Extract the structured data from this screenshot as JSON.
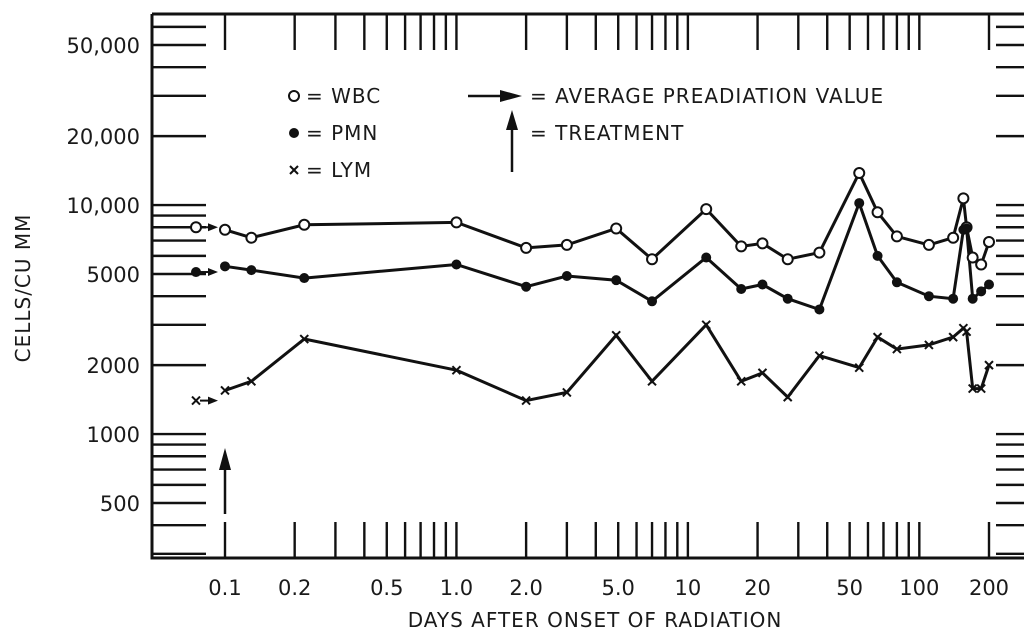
{
  "chart_data": {
    "type": "line",
    "xlabel": "DAYS AFTER ONSET OF RADIATION",
    "ylabel": "CELLS/CU MM",
    "x_scale": "log",
    "y_scale": "log",
    "xlim": [
      0.055,
      250
    ],
    "ylim": [
      300,
      65000
    ],
    "x_tick_labels": [
      "0.1",
      "0.2",
      "0.5",
      "1.0",
      "2.0",
      "5.0",
      "10",
      "20",
      "50",
      "100",
      "200"
    ],
    "x_tick_values": [
      0.1,
      0.2,
      0.5,
      1.0,
      2.0,
      5.0,
      10,
      20,
      50,
      100,
      200
    ],
    "y_tick_labels": [
      "500",
      "1000",
      "2000",
      "5000",
      "10,000",
      "20,000",
      "50,000"
    ],
    "y_tick_values": [
      500,
      1000,
      2000,
      5000,
      10000,
      20000,
      50000
    ],
    "legend": [
      {
        "symbol": "o",
        "text": "= WBC"
      },
      {
        "symbol": "•",
        "text": "= PMN"
      },
      {
        "symbol": "x",
        "text": "= LYM"
      }
    ],
    "annotations": {
      "arrow_right_text": "= AVERAGE PREADIATION VALUE",
      "arrow_up_text": "= TREATMENT"
    },
    "preradiation_values": {
      "WBC": 8000,
      "PMN": 5100,
      "LYM": 1400
    },
    "treatment_day": 0.1,
    "series": [
      {
        "name": "WBC",
        "marker": "open-circle",
        "x": [
          0.1,
          0.13,
          0.22,
          1.0,
          2.0,
          3.0,
          4.9,
          7.0,
          12,
          17,
          21,
          27,
          37,
          55,
          66,
          80,
          110,
          140,
          155,
          160,
          170,
          185,
          200
        ],
        "y": [
          7800,
          7200,
          8200,
          8400,
          6500,
          6700,
          7900,
          5800,
          9600,
          6600,
          6800,
          5800,
          6200,
          13800,
          9300,
          7300,
          6700,
          7200,
          10700,
          8000,
          5900,
          5500,
          6900
        ]
      },
      {
        "name": "PMN",
        "marker": "filled-circle",
        "x": [
          0.1,
          0.13,
          0.22,
          1.0,
          2.0,
          3.0,
          4.9,
          7.0,
          12,
          17,
          21,
          27,
          37,
          55,
          66,
          80,
          110,
          140,
          155,
          160,
          170,
          185,
          200
        ],
        "y": [
          5400,
          5200,
          4800,
          5500,
          4400,
          4900,
          4700,
          3800,
          5900,
          4300,
          4500,
          3900,
          3500,
          10200,
          6000,
          4600,
          4000,
          3900,
          7800,
          7900,
          3900,
          4200,
          4500
        ]
      },
      {
        "name": "LYM",
        "marker": "x",
        "x": [
          0.1,
          0.13,
          0.22,
          1.0,
          2.0,
          3.0,
          4.9,
          7.0,
          12,
          17,
          21,
          27,
          37,
          55,
          66,
          80,
          110,
          140,
          155,
          160,
          170,
          185,
          200
        ],
        "y": [
          1550,
          1700,
          2600,
          1900,
          1400,
          1520,
          2700,
          1700,
          3000,
          1700,
          1850,
          1450,
          2200,
          1950,
          2650,
          2350,
          2450,
          2650,
          2900,
          2800,
          1580,
          1580,
          2000
        ]
      }
    ]
  }
}
